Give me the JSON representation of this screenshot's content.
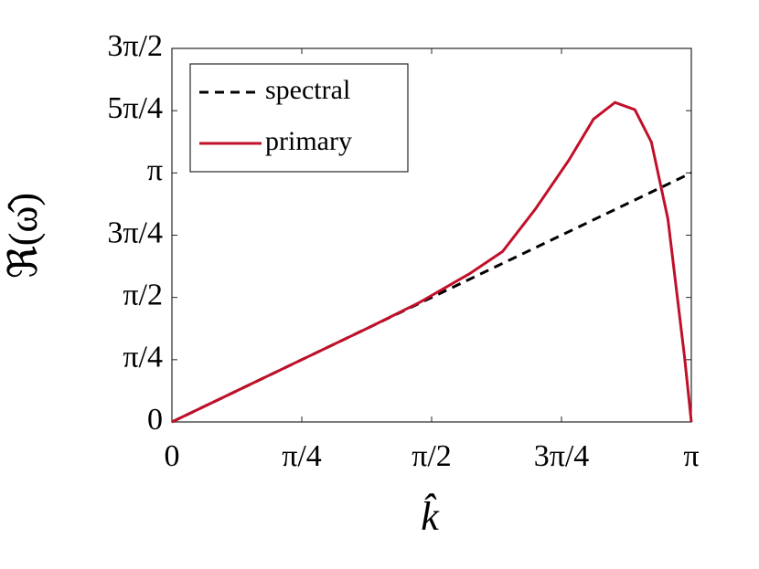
{
  "chart_data": {
    "type": "line",
    "xlabel": "k̂",
    "ylabel": "ℜ(ω̂)",
    "xlim": [
      0,
      3.1416
    ],
    "ylim": [
      0,
      4.7124
    ],
    "xticks": [
      {
        "value": 0,
        "label": "0"
      },
      {
        "value": 0.7854,
        "label": "π/4"
      },
      {
        "value": 1.5708,
        "label": "π/2"
      },
      {
        "value": 2.3562,
        "label": "3π/4"
      },
      {
        "value": 3.1416,
        "label": "π"
      }
    ],
    "yticks": [
      {
        "value": 0,
        "label": "0"
      },
      {
        "value": 0.7854,
        "label": "π/4"
      },
      {
        "value": 1.5708,
        "label": "π/2"
      },
      {
        "value": 2.3562,
        "label": "3π/4"
      },
      {
        "value": 3.1416,
        "label": "π"
      },
      {
        "value": 3.927,
        "label": "5π/4"
      },
      {
        "value": 4.7124,
        "label": "3π/2"
      }
    ],
    "legend": "upper left",
    "series": [
      {
        "name": "spectral",
        "color": "#000000",
        "dash": true,
        "x": [
          0,
          3.1416
        ],
        "values": [
          0,
          3.1416
        ]
      },
      {
        "name": "primary",
        "color": "#c0102a",
        "dash": false,
        "x": [
          0,
          0.4,
          0.8,
          1.2,
          1.5,
          1.8,
          2.0,
          2.2,
          2.4,
          2.55,
          2.68,
          2.8,
          2.9,
          3.0,
          3.1,
          3.1416
        ],
        "values": [
          0,
          0.4,
          0.8,
          1.2,
          1.51,
          1.87,
          2.15,
          2.69,
          3.3,
          3.82,
          4.03,
          3.94,
          3.53,
          2.56,
          0.83,
          0
        ]
      }
    ]
  }
}
